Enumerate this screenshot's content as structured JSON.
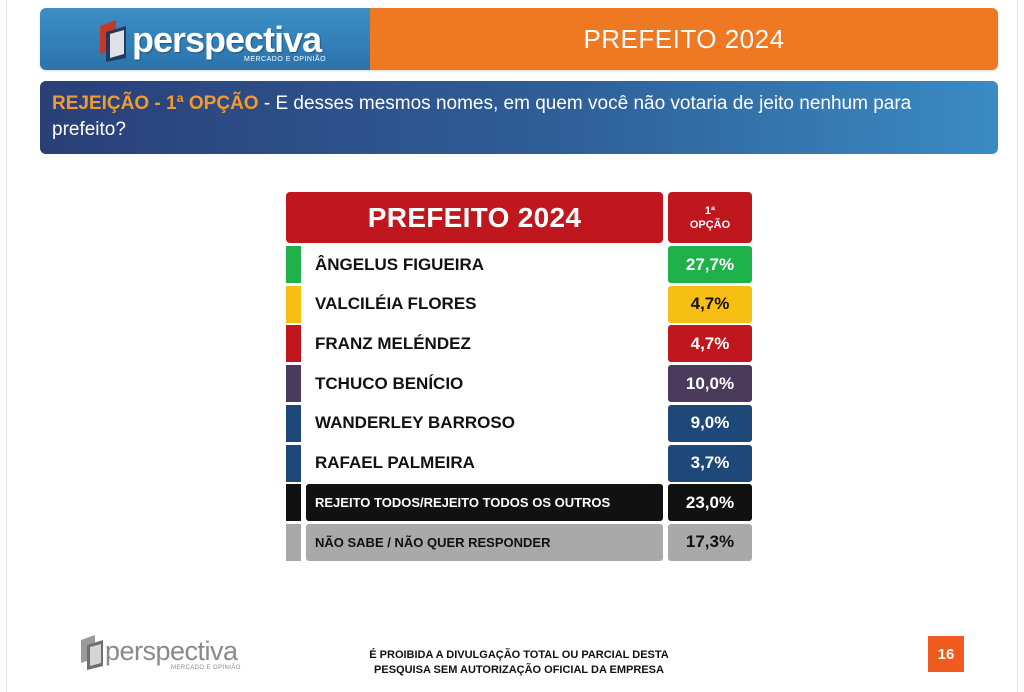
{
  "header": {
    "logo_text": "perspectiva",
    "logo_subtext": "MERCADO E OPINIÃO",
    "title": "PREFEITO 2024",
    "colors": {
      "logo_bg": "#2a73ad",
      "title_bg": "#ef7823"
    }
  },
  "question": {
    "highlight": "REJEIÇÃO - 1ª OPÇÃO",
    "text": " - E desses mesmos nomes, em quem você não votaria de jeito nenhum para prefeito?"
  },
  "table": {
    "title": "PREFEITO 2024",
    "column_header_line1": "1ª",
    "column_header_line2": "OPÇÃO",
    "rows": [
      {
        "name": "ÂNGELUS FIGUEIRA",
        "value": "27,7%",
        "color": "#1fb24b",
        "name_bg": "",
        "name_color": "#111111",
        "value_color": "#ffffff"
      },
      {
        "name": "VALCILÉIA FLORES",
        "value": "4,7%",
        "color": "#f7bf13",
        "name_bg": "",
        "name_color": "#111111",
        "value_color": "#111111"
      },
      {
        "name": "FRANZ MELÉNDEZ",
        "value": "4,7%",
        "color": "#c0161d",
        "name_bg": "",
        "name_color": "#111111",
        "value_color": "#ffffff"
      },
      {
        "name": "TCHUCO BENÍCIO",
        "value": "10,0%",
        "color": "#4a3a5c",
        "name_bg": "",
        "name_color": "#111111",
        "value_color": "#ffffff"
      },
      {
        "name": "WANDERLEY BARROSO",
        "value": "9,0%",
        "color": "#1e4877",
        "name_bg": "",
        "name_color": "#111111",
        "value_color": "#ffffff"
      },
      {
        "name": "RAFAEL PALMEIRA",
        "value": "3,7%",
        "color": "#1e4877",
        "name_bg": "",
        "name_color": "#111111",
        "value_color": "#ffffff"
      },
      {
        "name": "REJEITO TODOS/REJEITO  TODOS OS OUTROS",
        "value": "23,0%",
        "color": "#111111",
        "name_bg": "#111111",
        "name_color": "#ffffff",
        "value_color": "#ffffff"
      },
      {
        "name": "NÃO SABE / NÃO QUER RESPONDER",
        "value": "17,3%",
        "color": "#a9a9a9",
        "name_bg": "#a9a9a9",
        "name_color": "#111111",
        "value_color": "#111111"
      }
    ]
  },
  "footer": {
    "logo_text": "perspectiva",
    "logo_subtext": "MERCADO E OPINIÃO",
    "disclaimer_line1": "É PROIBIDA A DIVULGAÇÃO TOTAL OU PARCIAL DESTA",
    "disclaimer_line2": "PESQUISA SEM AUTORIZAÇÃO OFICIAL DA EMPRESA",
    "page_number": "16"
  }
}
